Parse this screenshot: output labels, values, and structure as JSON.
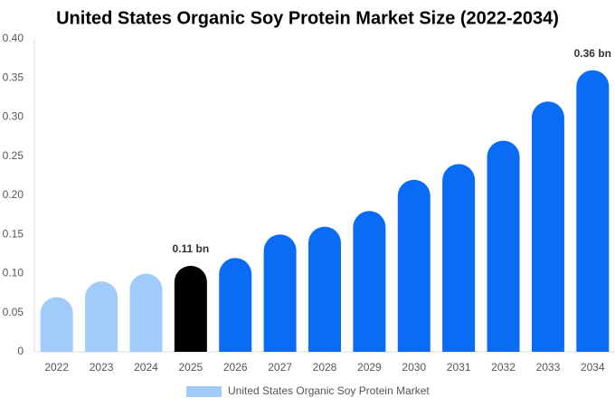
{
  "chart_data": {
    "type": "bar",
    "title": "United States Organic Soy Protein Market Size (2022-2034)",
    "categories": [
      "2022",
      "2023",
      "2024",
      "2025",
      "2026",
      "2027",
      "2028",
      "2029",
      "2030",
      "2031",
      "2032",
      "2033",
      "2034"
    ],
    "series": [
      {
        "name": "United States Organic Soy Protein Market",
        "color": "#a0cbfb",
        "values": [
          0.07,
          0.09,
          0.1,
          0.11,
          0.12,
          0.15,
          0.16,
          0.18,
          0.22,
          0.24,
          0.27,
          0.32,
          0.36
        ],
        "value_labels": [
          null,
          null,
          null,
          "0.11 bn",
          null,
          null,
          null,
          null,
          null,
          null,
          null,
          null,
          "0.36 bn"
        ],
        "bar_colors": [
          "#a0cbfb",
          "#a0cbfb",
          "#a0cbfb",
          "#000000",
          "#0a6cf5",
          "#0a6cf5",
          "#0a6cf5",
          "#0a6cf5",
          "#0a6cf5",
          "#0a6cf5",
          "#0a6cf5",
          "#0a6cf5",
          "#0a6cf5"
        ]
      }
    ],
    "ylim": [
      0,
      0.4
    ],
    "yticks": [
      0,
      0.05,
      {
        "value": 0.1,
        "label": "0.10"
      },
      0.15,
      {
        "value": 0.2,
        "label": "0.20"
      },
      0.25,
      {
        "value": 0.3,
        "label": "0.30"
      },
      0.35,
      {
        "value": 0.4,
        "label": "0.40"
      }
    ],
    "grid": false
  }
}
